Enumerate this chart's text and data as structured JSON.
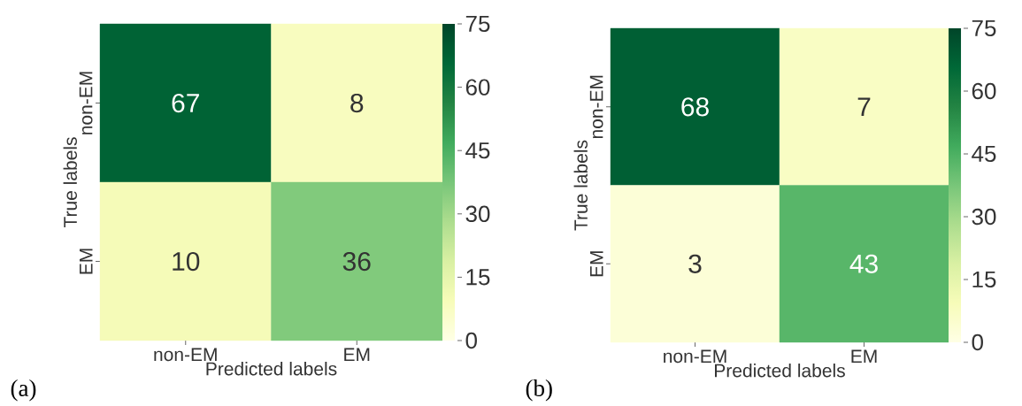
{
  "chart_data": [
    {
      "type": "heatmap",
      "xlabel": "Predicted labels",
      "ylabel": "True labels",
      "categories": [
        "non-EM",
        "EM"
      ],
      "y_categories": [
        "non-EM",
        "EM"
      ],
      "cells": [
        [
          67,
          8
        ],
        [
          10,
          36
        ]
      ],
      "clim": [
        0,
        75
      ],
      "cticks": [
        0,
        15,
        30,
        45,
        60,
        75
      ],
      "data_labels": true,
      "annotations": [
        "(a)"
      ]
    },
    {
      "type": "heatmap",
      "xlabel": "Predicted labels",
      "ylabel": "True labels",
      "categories": [
        "non-EM",
        "EM"
      ],
      "y_categories": [
        "non-EM",
        "EM"
      ],
      "cells": [
        [
          68,
          7
        ],
        [
          3,
          43
        ]
      ],
      "clim": [
        0,
        75
      ],
      "cticks": [
        0,
        15,
        30,
        45,
        60,
        75
      ],
      "data_labels": true,
      "annotations": [
        "(b)"
      ]
    }
  ]
}
